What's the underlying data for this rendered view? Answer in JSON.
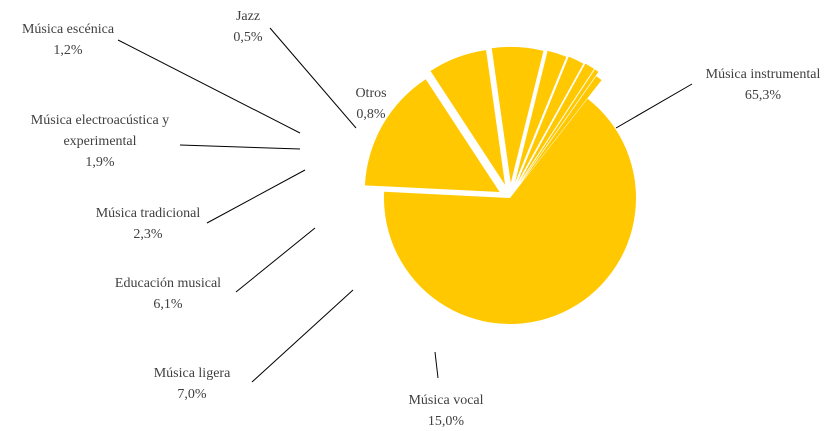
{
  "chart_data": {
    "type": "pie",
    "title": "",
    "color": "#FFC800",
    "leader_color": "#000000",
    "slices": [
      {
        "label": "Música instrumental",
        "value": 65.3,
        "value_text": "65,3%"
      },
      {
        "label": "Música vocal",
        "value": 15.0,
        "value_text": "15,0%"
      },
      {
        "label": "Música ligera",
        "value": 7.0,
        "value_text": "7,0%"
      },
      {
        "label": "Educación musical",
        "value": 6.1,
        "value_text": "6,1%"
      },
      {
        "label": "Música tradicional",
        "value": 2.3,
        "value_text": "2,3%"
      },
      {
        "label": "Música electroacústica y experimental",
        "value": 1.9,
        "value_text": "1,9%"
      },
      {
        "label": "Música escénica",
        "value": 1.2,
        "value_text": "1,2%"
      },
      {
        "label": "Jazz",
        "value": 0.5,
        "value_text": "0,5%"
      },
      {
        "label": "Otros",
        "value": 0.8,
        "value_text": "0,8%"
      }
    ]
  }
}
